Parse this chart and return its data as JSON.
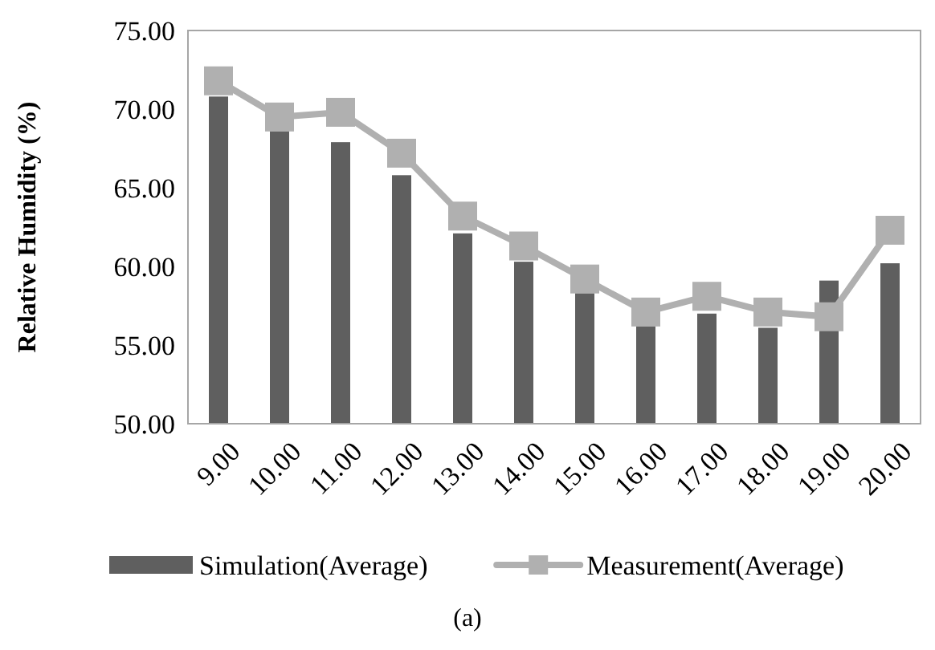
{
  "chart_data": {
    "type": "bar",
    "ylabel": "Relative Humidity (%)",
    "categories": [
      "9.00",
      "10.00",
      "11.00",
      "12.00",
      "13.00",
      "14.00",
      "15.00",
      "16.00",
      "17.00",
      "18.00",
      "19.00",
      "20.00"
    ],
    "series": [
      {
        "name": "Simulation(Average)",
        "color": "#5f5f5f",
        "values": [
          70.8,
          68.6,
          67.9,
          65.8,
          62.1,
          60.3,
          58.3,
          56.2,
          57.0,
          56.1,
          59.1,
          60.2
        ]
      },
      {
        "name": "Measurement(Average)",
        "type": "line",
        "color": "#b0b0b0",
        "marker": "square",
        "values": [
          71.8,
          69.5,
          69.8,
          67.2,
          63.2,
          61.3,
          59.2,
          57.1,
          58.1,
          57.1,
          56.8,
          62.3
        ]
      }
    ],
    "ylim": [
      50,
      75
    ],
    "yticks": [
      {
        "value": 50,
        "label": "50.00"
      },
      {
        "value": 55,
        "label": "55.00"
      },
      {
        "value": 60,
        "label": "60.00"
      },
      {
        "value": 65,
        "label": "65.00"
      },
      {
        "value": 70,
        "label": "70.00"
      },
      {
        "value": 75,
        "label": "75.00"
      }
    ],
    "grid": false,
    "legend": "bottom",
    "annotations": [
      "(a)"
    ]
  }
}
